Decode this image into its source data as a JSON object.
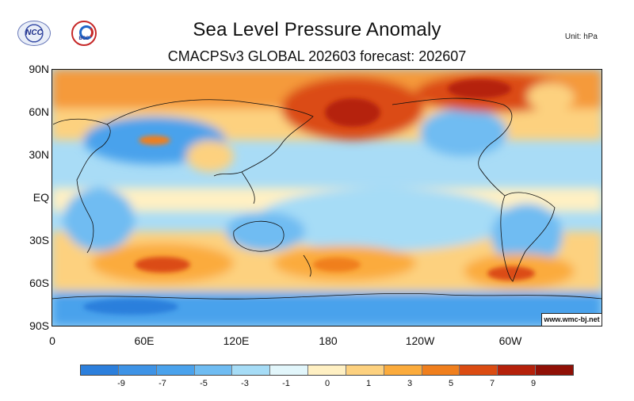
{
  "header": {
    "title": "Sea Level Pressure Anomaly",
    "subtitle": "CMACPSv3 GLOBAL 202603 forecast: 202607",
    "unit": "Unit:  hPa",
    "logo_left": "NCC",
    "logo_right": "BCC"
  },
  "map": {
    "lat_labels": [
      "90N",
      "60N",
      "30N",
      "EQ",
      "30S",
      "60S",
      "90S"
    ],
    "lon_labels": [
      "0",
      "60E",
      "120E",
      "180",
      "120W",
      "60W"
    ],
    "credit": "www.wmc-bj.net",
    "regions": [
      {
        "name": "arctic-high",
        "lon": [
          0,
          360
        ],
        "lat": [
          62,
          90
        ],
        "level": 5
      },
      {
        "name": "north-pacific-high",
        "lon": [
          150,
          230
        ],
        "lat": [
          45,
          75
        ],
        "level": 7
      },
      {
        "name": "north-america-high",
        "lon": [
          240,
          320
        ],
        "lat": [
          55,
          85
        ],
        "level": 7
      },
      {
        "name": "asia-low",
        "lon": [
          60,
          130
        ],
        "lat": [
          25,
          50
        ],
        "level": -5
      },
      {
        "name": "north-america-low",
        "lon": [
          240,
          290
        ],
        "lat": [
          25,
          45
        ],
        "level": -3
      },
      {
        "name": "south-indian-high",
        "lon": [
          40,
          110
        ],
        "lat": [
          -55,
          -35
        ],
        "level": 5
      },
      {
        "name": "south-pacific-high",
        "lon": [
          160,
          220
        ],
        "lat": [
          -55,
          -35
        ],
        "level": 5
      },
      {
        "name": "south-atlantic-high",
        "lon": [
          280,
          340
        ],
        "lat": [
          -60,
          -40
        ],
        "level": 5
      },
      {
        "name": "tropical-pacific",
        "lon": [
          150,
          280
        ],
        "lat": [
          -25,
          20
        ],
        "level": -1
      },
      {
        "name": "antarctic-low",
        "lon": [
          0,
          360
        ],
        "lat": [
          -90,
          -70
        ],
        "level": -5
      }
    ]
  },
  "colorbar": {
    "colors": [
      "#2c7fdc",
      "#3e93e6",
      "#4aa2ec",
      "#6fbcf2",
      "#a6dcf6",
      "#e2f6fb",
      "#fff0c3",
      "#fdd17f",
      "#fbab3c",
      "#f07f1d",
      "#db4c12",
      "#b5210b",
      "#901006"
    ],
    "labels": [
      "-9",
      "-7",
      "-5",
      "-3",
      "-1",
      "0",
      "1",
      "3",
      "5",
      "7",
      "9"
    ]
  }
}
